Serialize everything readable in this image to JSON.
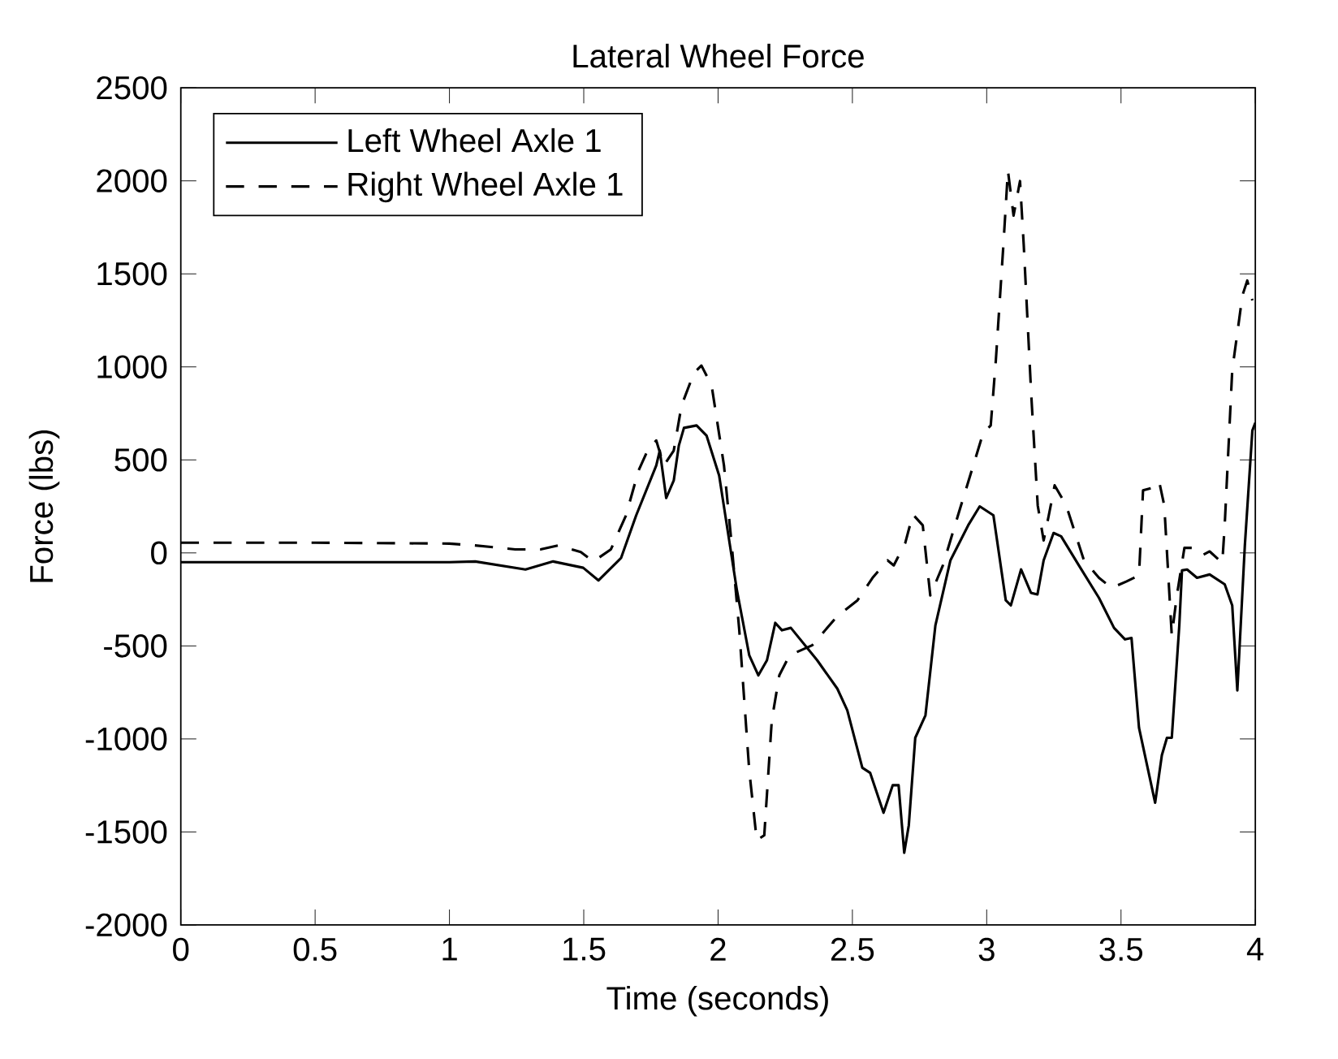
{
  "chart_data": {
    "type": "line",
    "title": "Lateral Wheel Force",
    "xlabel": "Time (seconds)",
    "ylabel": "Force (lbs)",
    "xlim": [
      0,
      4
    ],
    "ylim": [
      -2000,
      2500
    ],
    "xticks": [
      0,
      0.5,
      1,
      1.5,
      2,
      2.5,
      3,
      3.5,
      4
    ],
    "yticks": [
      -2000,
      -1500,
      -1000,
      -500,
      0,
      500,
      1000,
      1500,
      2000,
      2500
    ],
    "grid": false,
    "legend": "top left",
    "marker": "none",
    "series": [
      {
        "name": "Left Wheel Axle 1",
        "color": "#000000",
        "line_style": "solid",
        "x": [
          0,
          0.5,
          1.0,
          1.096,
          1.283,
          1.386,
          1.498,
          1.555,
          1.639,
          1.695,
          1.77,
          1.783,
          1.807,
          1.835,
          1.854,
          1.873,
          1.92,
          1.957,
          2.004,
          2.07,
          2.116,
          2.15,
          2.182,
          2.213,
          2.238,
          2.271,
          2.369,
          2.444,
          2.481,
          2.537,
          2.566,
          2.616,
          2.65,
          2.672,
          2.693,
          2.71,
          2.734,
          2.772,
          2.809,
          2.865,
          2.931,
          2.974,
          3.025,
          3.071,
          3.09,
          3.128,
          3.165,
          3.189,
          3.212,
          3.249,
          3.277,
          3.343,
          3.418,
          3.474,
          3.515,
          3.539,
          3.567,
          3.627,
          3.652,
          3.671,
          3.689,
          3.717,
          3.727,
          3.746,
          3.783,
          3.83,
          3.886,
          3.914,
          3.933,
          3.961,
          3.989,
          4.0
        ],
        "values": [
          -50,
          -50,
          -50,
          -46,
          -89,
          -46,
          -80,
          -148,
          -27,
          201,
          470,
          550,
          295,
          389,
          577,
          672,
          685,
          631,
          416,
          -200,
          -550,
          -658,
          -577,
          -376,
          -416,
          -403,
          -577,
          -730,
          -846,
          -1155,
          -1182,
          -1397,
          -1249,
          -1249,
          -1612,
          -1464,
          -994,
          -873,
          -390,
          -40,
          148,
          250,
          202,
          -255,
          -282,
          -89,
          -215,
          -223,
          -40,
          107,
          89,
          -67,
          -242,
          -403,
          -465,
          -457,
          -940,
          -1343,
          -1088,
          -994,
          -994,
          -390,
          -94,
          -89,
          -134,
          -116,
          -169,
          -282,
          -739,
          40,
          658,
          700
        ]
      },
      {
        "name": "Right Wheel Axle 1",
        "color": "#000000",
        "line_style": "dashed",
        "x": [
          0,
          0.5,
          1.0,
          1.096,
          1.245,
          1.339,
          1.404,
          1.489,
          1.536,
          1.601,
          1.657,
          1.704,
          1.742,
          1.77,
          1.798,
          1.835,
          1.864,
          1.91,
          1.938,
          1.976,
          2.022,
          2.051,
          2.079,
          2.116,
          2.144,
          2.172,
          2.2,
          2.228,
          2.266,
          2.35,
          2.444,
          2.519,
          2.575,
          2.631,
          2.654,
          2.697,
          2.725,
          2.762,
          2.79,
          2.837,
          2.893,
          2.95,
          2.987,
          3.015,
          3.034,
          3.062,
          3.079,
          3.1,
          3.124,
          3.138,
          3.166,
          3.19,
          3.212,
          3.231,
          3.253,
          3.296,
          3.362,
          3.418,
          3.465,
          3.521,
          3.567,
          3.582,
          3.614,
          3.642,
          3.661,
          3.689,
          3.708,
          3.736,
          3.764,
          3.802,
          3.83,
          3.877,
          3.886,
          3.914,
          3.952,
          3.97,
          3.989
        ],
        "values": [
          55,
          55,
          50,
          40,
          19,
          19,
          40,
          5,
          -46,
          19,
          201,
          443,
          564,
          604,
          470,
          550,
          792,
          967,
          1007,
          900,
          470,
          40,
          -416,
          -1169,
          -1545,
          -1518,
          -900,
          -658,
          -550,
          -497,
          -340,
          -255,
          -134,
          -40,
          -67,
          54,
          207,
          148,
          -229,
          -67,
          201,
          470,
          645,
          685,
          1034,
          1652,
          2055,
          1813,
          1999,
          1652,
          846,
          255,
          67,
          201,
          363,
          255,
          -40,
          -134,
          -188,
          -153,
          -121,
          336,
          349,
          384,
          255,
          -444,
          -229,
          27,
          27,
          -13,
          8,
          -54,
          148,
          981,
          1384,
          1464,
          1357
        ]
      }
    ]
  }
}
